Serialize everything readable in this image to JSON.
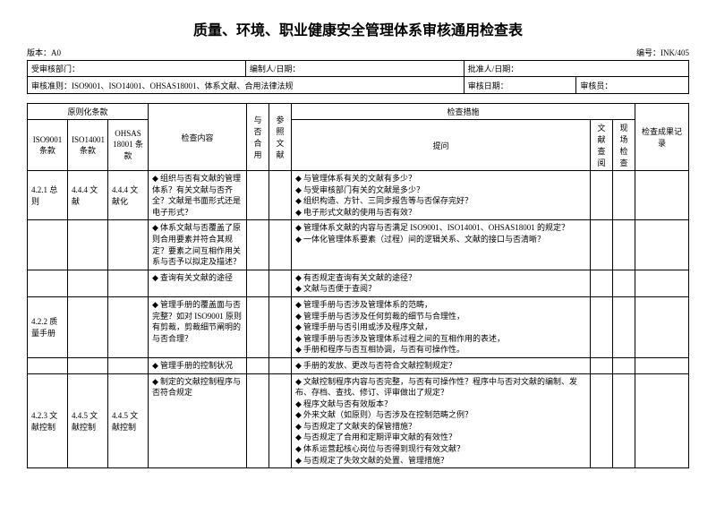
{
  "title": "质量、环境、职业健康安全管理体系审核通用检查表",
  "version_label": "版本：A0",
  "doc_no_label": "编号：INK/405",
  "header1": {
    "dept": "受审核部门：",
    "preparer": "编制人/日期：",
    "approver": "批准人/日期："
  },
  "header2": {
    "criteria_label": "审核准则：",
    "criteria_value": "ISO9001、ISO14001、OHSAS18001、体系文献、合用法律法规",
    "date": "审核日期：",
    "auditor": "审核员："
  },
  "columns": {
    "group_clause": "原则化条款",
    "iso9001": "ISO9001 条款",
    "iso14001": "ISO14001 条款",
    "ohsas": "OHSAS 18001 条款",
    "content": "检查内容",
    "apply": "与否合用",
    "ref": "参照文献",
    "group_measures": "检查措施",
    "question": "提问",
    "docchk": "文献查阅",
    "sitechk": "现场检查",
    "result": "检查成果记录"
  },
  "rows": [
    {
      "iso9001": "4.2.1 总则",
      "iso14001": "4.4.4 文献",
      "ohsas": "4.4.4 文献化",
      "content": [
        "组织与否有文献的管理体系？有关文献与否齐全？文献是书面形式还是电子形式？"
      ],
      "questions": [
        "与管理体系有关的文献有多少？",
        "与受审核部门有关的文献是多少？",
        "组织构造、方针、三同步报告等与否保存完好？",
        "电子形式文献的使用与否有效？"
      ]
    },
    {
      "iso9001": "",
      "iso14001": "",
      "ohsas": "",
      "content": [
        "体系文献与否覆盖了原则合用要素并符合其规定？要素之间互相作用关系与否予以拟定及描述？"
      ],
      "questions": [
        "管理体系文献的内容与否满足 ISO9001、ISO14001、OHSAS18001 的规定？",
        "一体化管理体系要素（过程）间的逻辑关系、文献的接口与否清晰？"
      ]
    },
    {
      "iso9001": "",
      "iso14001": "",
      "ohsas": "",
      "content": [
        "查询有关文献的途径"
      ],
      "questions": [
        "有否规定查询有关文献的途径？",
        "文献与否便于查阅？"
      ]
    },
    {
      "iso9001": "4.2.2 质量手册",
      "iso14001": "",
      "ohsas": "",
      "content": [
        "管理手册的覆盖面与否完整？如对 ISO9001 原则有剪裁，剪裁细节阐明的与否合理？"
      ],
      "questions": [
        "管理手册与否涉及管理体系的范畴，",
        "管理手册与否涉及任何剪裁的细节与合理性，",
        "管理手册与否引用或涉及程序文献，",
        "管理手册与否涉及管理体系过程之间的互相作用的表述，",
        "手册和程序与否互相协调，与否有可操作性。"
      ]
    },
    {
      "iso9001": "",
      "iso14001": "",
      "ohsas": "",
      "content": [
        "管理手册的控制状况"
      ],
      "questions": [
        "手册的发放、更改与否符合文献控制规定？"
      ]
    },
    {
      "iso9001": "4.2.3 文献控制",
      "iso14001": "4.4.5 文献控制",
      "ohsas": "4.4.5 文献控制",
      "content": [
        "制定的文献控制程序与否符合规定"
      ],
      "questions": [
        "文献控制程序内容与否完整，与否有可操作性？程序中与否对文献的编制、发布、存档、查找、修订、评审做出了规定？",
        "程序文献与否有效版本？",
        "外来文献（如原则）与否涉及在控制范畴之例？",
        "与否规定了文献夹的保管措施？",
        "与否规定了合用和定期评审文献的有效性？",
        "体系运营起核心岗位与否得到现行有效文献？",
        "与否规定了失效文献的处置、管理措施？"
      ]
    }
  ]
}
